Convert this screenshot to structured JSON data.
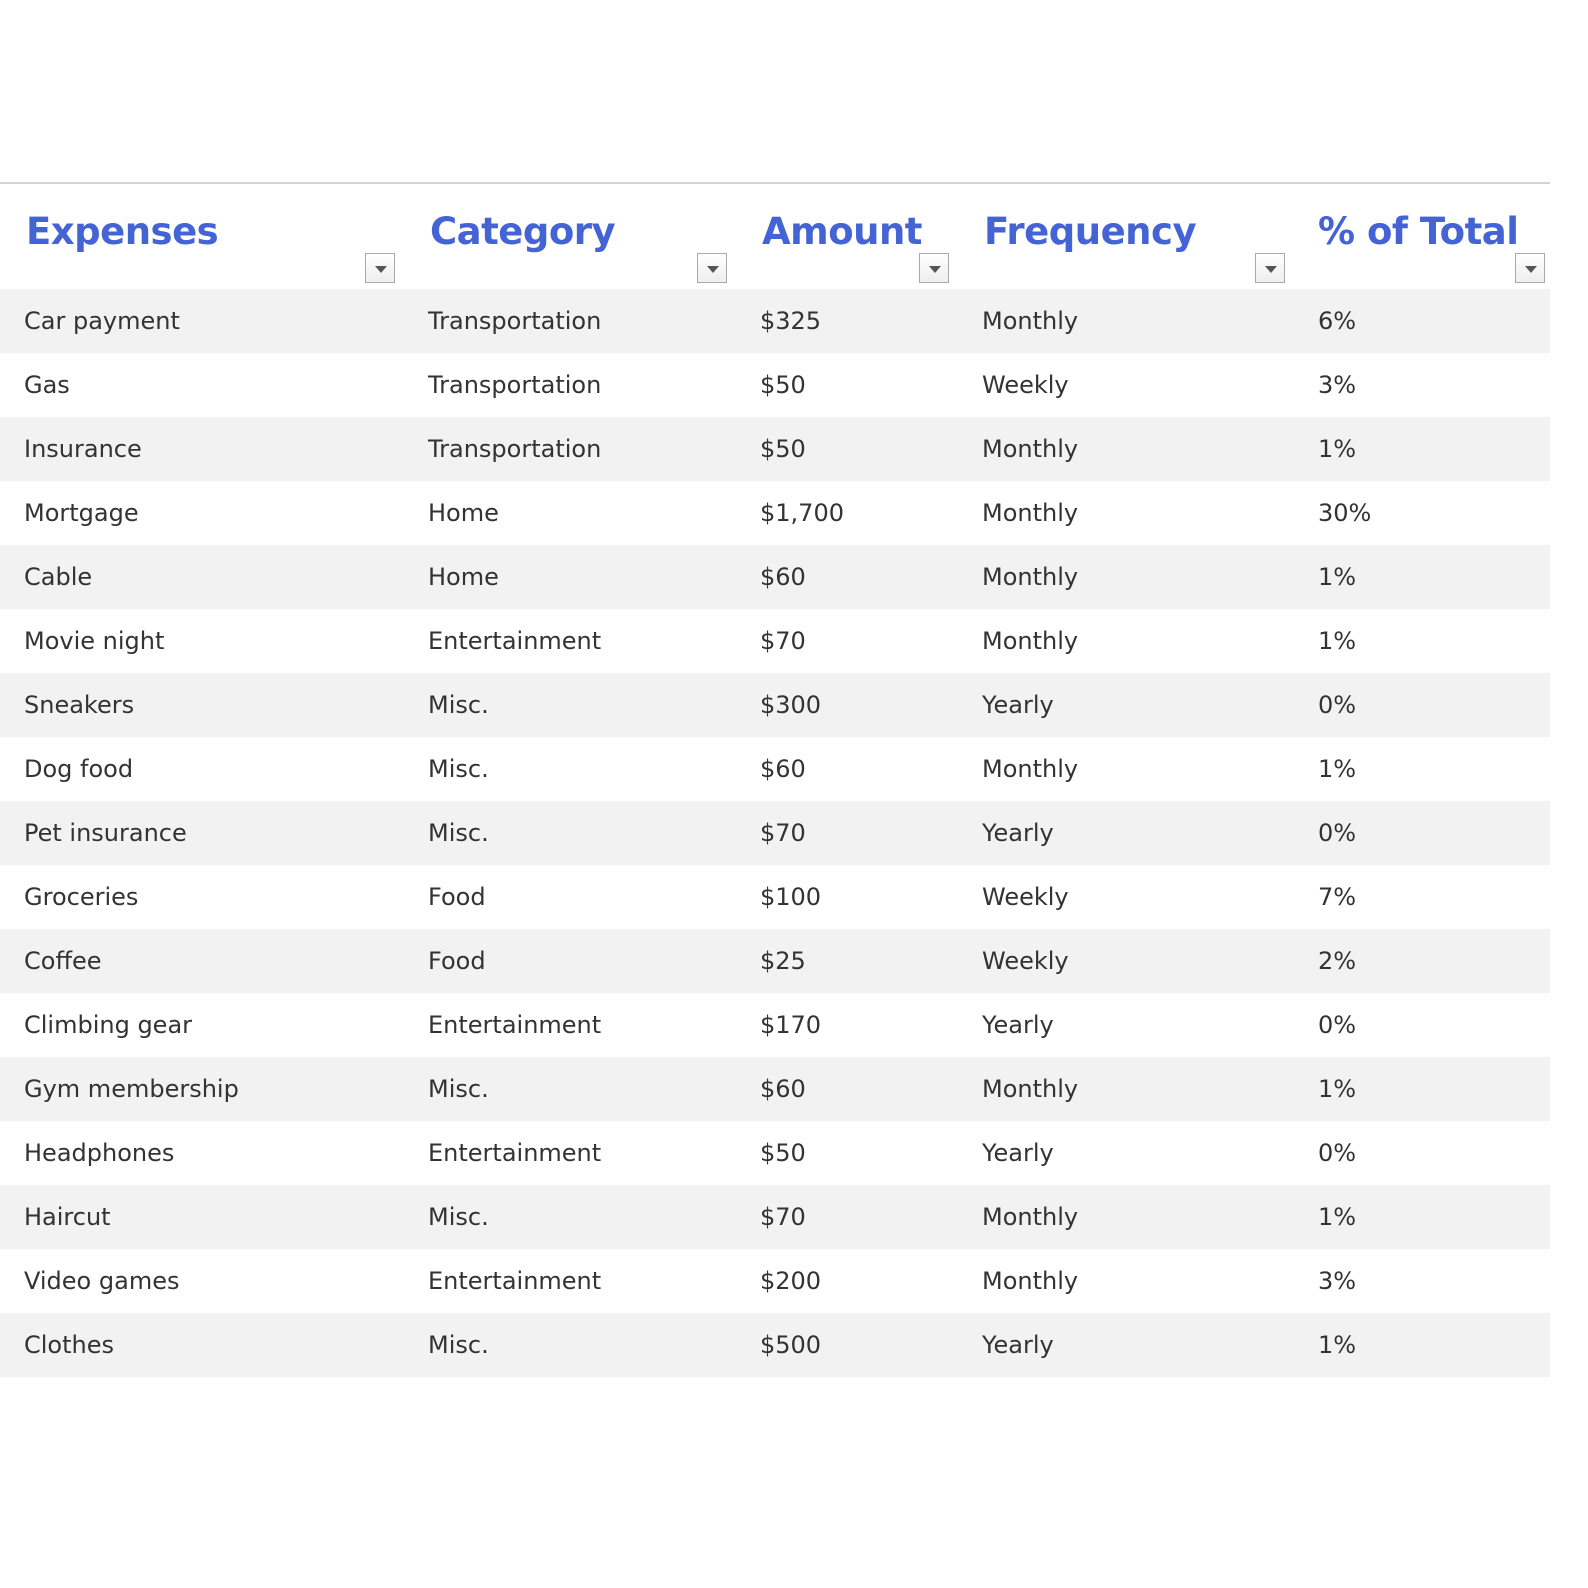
{
  "table": {
    "headers": [
      "Expenses",
      "Category",
      "Amount",
      "Frequency",
      "% of Total"
    ],
    "rows": [
      [
        "Car payment",
        "Transportation",
        "$325",
        "Monthly",
        "6%"
      ],
      [
        "Gas",
        "Transportation",
        "$50",
        "Weekly",
        "3%"
      ],
      [
        "Insurance",
        "Transportation",
        "$50",
        "Monthly",
        "1%"
      ],
      [
        "Mortgage",
        "Home",
        "$1,700",
        "Monthly",
        "30%"
      ],
      [
        "Cable",
        "Home",
        "$60",
        "Monthly",
        "1%"
      ],
      [
        "Movie night",
        "Entertainment",
        "$70",
        "Monthly",
        "1%"
      ],
      [
        "Sneakers",
        "Misc.",
        "$300",
        "Yearly",
        "0%"
      ],
      [
        "Dog food",
        "Misc.",
        "$60",
        "Monthly",
        "1%"
      ],
      [
        "Pet insurance",
        "Misc.",
        "$70",
        "Yearly",
        "0%"
      ],
      [
        "Groceries",
        "Food",
        "$100",
        "Weekly",
        "7%"
      ],
      [
        "Coffee",
        "Food",
        "$25",
        "Weekly",
        "2%"
      ],
      [
        "Climbing gear",
        "Entertainment",
        "$170",
        "Yearly",
        "0%"
      ],
      [
        "Gym membership",
        "Misc.",
        "$60",
        "Monthly",
        "1%"
      ],
      [
        "Headphones",
        "Entertainment",
        "$50",
        "Yearly",
        "0%"
      ],
      [
        "Haircut",
        "Misc.",
        "$70",
        "Monthly",
        "1%"
      ],
      [
        "Video games",
        "Entertainment",
        "$200",
        "Monthly",
        "3%"
      ],
      [
        "Clothes",
        "Misc.",
        "$500",
        "Yearly",
        "1%"
      ]
    ]
  },
  "colors": {
    "header": "#4463d4",
    "band": "#f2f2f2"
  }
}
